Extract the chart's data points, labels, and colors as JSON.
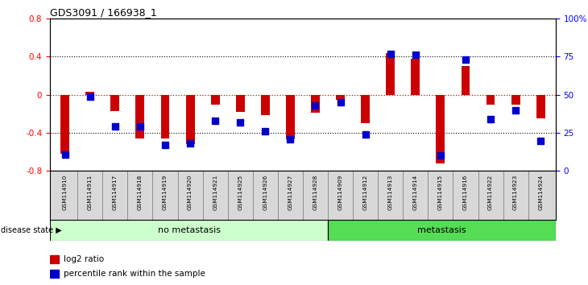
{
  "title": "GDS3091 / 166938_1",
  "samples": [
    "GSM114910",
    "GSM114911",
    "GSM114917",
    "GSM114918",
    "GSM114919",
    "GSM114920",
    "GSM114921",
    "GSM114925",
    "GSM114926",
    "GSM114927",
    "GSM114928",
    "GSM114909",
    "GSM114912",
    "GSM114913",
    "GSM114914",
    "GSM114915",
    "GSM114916",
    "GSM114922",
    "GSM114923",
    "GSM114924"
  ],
  "log2_ratio": [
    -0.62,
    0.03,
    -0.17,
    -0.46,
    -0.46,
    -0.52,
    -0.1,
    -0.18,
    -0.21,
    -0.47,
    -0.19,
    -0.05,
    -0.3,
    0.44,
    0.38,
    -0.72,
    0.3,
    -0.1,
    -0.1,
    -0.25
  ],
  "percentile": [
    11,
    49,
    29,
    29,
    17,
    18,
    33,
    32,
    26,
    21,
    43,
    45,
    24,
    77,
    76,
    10,
    73,
    34,
    40,
    20
  ],
  "no_metastasis_count": 11,
  "metastasis_count": 9,
  "bar_color": "#cc0000",
  "dot_color": "#0000cc",
  "no_meta_color": "#ccffcc",
  "meta_color": "#55dd55",
  "label_bg_color": "#d8d8d8",
  "ylim": [
    -0.8,
    0.8
  ],
  "yticks_left": [
    -0.8,
    -0.4,
    0.0,
    0.4,
    0.8
  ],
  "yticks_right": [
    0,
    25,
    50,
    75,
    100
  ],
  "bar_width": 0.35,
  "dot_size": 28
}
